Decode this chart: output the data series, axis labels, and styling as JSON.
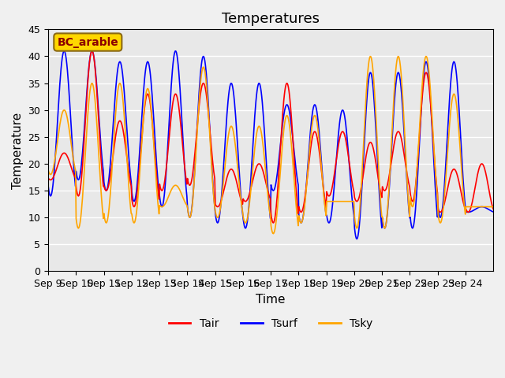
{
  "title": "Temperatures",
  "xlabel": "Time",
  "ylabel": "Temperature",
  "ylim": [
    0,
    45
  ],
  "xtick_labels": [
    "Sep 9",
    "Sep 10",
    "Sep 11",
    "Sep 12",
    "Sep 13",
    "Sep 14",
    "Sep 15",
    "Sep 16",
    "Sep 17",
    "Sep 18",
    "Sep 19",
    "Sep 20",
    "Sep 21",
    "Sep 22",
    "Sep 23",
    "Sep 24"
  ],
  "ytick_values": [
    0,
    5,
    10,
    15,
    20,
    25,
    30,
    35,
    40,
    45
  ],
  "legend_label": "BC_arable",
  "legend_text_color": "#8B0000",
  "legend_box_facecolor": "#FFD700",
  "legend_box_edgecolor": "#8B6914",
  "line_colors": {
    "Tair": "#FF0000",
    "Tsurf": "#0000FF",
    "Tsky": "#FFA500"
  },
  "background_color": "#E8E8E8",
  "fig_background_color": "#F0F0F0",
  "grid_color": "#FFFFFF",
  "title_fontsize": 13,
  "axis_label_fontsize": 11,
  "tick_fontsize": 9,
  "n_points_per_day": 48,
  "n_days": 16,
  "Tair_params": [
    {
      "min": 17,
      "max": 22
    },
    {
      "min": 14,
      "max": 41
    },
    {
      "min": 15,
      "max": 28
    },
    {
      "min": 12,
      "max": 33
    },
    {
      "min": 15,
      "max": 33
    },
    {
      "min": 16,
      "max": 35
    },
    {
      "min": 12,
      "max": 19
    },
    {
      "min": 13,
      "max": 20
    },
    {
      "min": 9,
      "max": 35
    },
    {
      "min": 11,
      "max": 26
    },
    {
      "min": 14,
      "max": 26
    },
    {
      "min": 13,
      "max": 24
    },
    {
      "min": 15,
      "max": 26
    },
    {
      "min": 13,
      "max": 37
    },
    {
      "min": 11,
      "max": 19
    },
    {
      "min": 11,
      "max": 20
    }
  ],
  "Tsurf_params": [
    {
      "min": 14,
      "max": 41
    },
    {
      "min": 17,
      "max": 41
    },
    {
      "min": 15,
      "max": 39
    },
    {
      "min": 13,
      "max": 39
    },
    {
      "min": 12,
      "max": 41
    },
    {
      "min": 10,
      "max": 40
    },
    {
      "min": 9,
      "max": 35
    },
    {
      "min": 8,
      "max": 35
    },
    {
      "min": 15,
      "max": 31
    },
    {
      "min": 9,
      "max": 31
    },
    {
      "min": 9,
      "max": 30
    },
    {
      "min": 6,
      "max": 37
    },
    {
      "min": 8,
      "max": 37
    },
    {
      "min": 8,
      "max": 39
    },
    {
      "min": 10,
      "max": 39
    },
    {
      "min": 11,
      "max": 12
    }
  ],
  "Tsky_params": [
    {
      "min": 18,
      "max": 30
    },
    {
      "min": 8,
      "max": 35
    },
    {
      "min": 9,
      "max": 35
    },
    {
      "min": 9,
      "max": 34
    },
    {
      "min": 12,
      "max": 16
    },
    {
      "min": 10,
      "max": 38
    },
    {
      "min": 10,
      "max": 27
    },
    {
      "min": 9,
      "max": 27
    },
    {
      "min": 7,
      "max": 29
    },
    {
      "min": 9,
      "max": 29
    },
    {
      "min": 13,
      "max": 13
    },
    {
      "min": 8,
      "max": 40
    },
    {
      "min": 8,
      "max": 40
    },
    {
      "min": 12,
      "max": 40
    },
    {
      "min": 9,
      "max": 33
    },
    {
      "min": 12,
      "max": 12
    }
  ]
}
